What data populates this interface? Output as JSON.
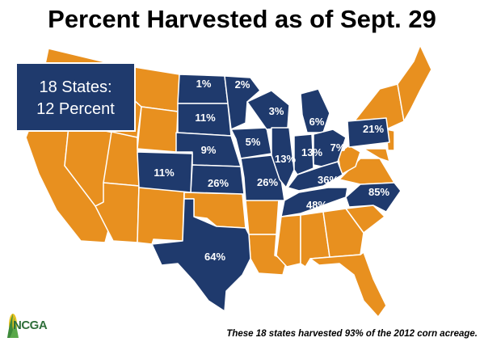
{
  "title": "Percent Harvested as of Sept. 29",
  "summary": {
    "line1": "18 States:",
    "line2": "12 Percent"
  },
  "footnote": "These 18 states harvested 93% of the 2012 corn acreage.",
  "logo_text": "NCGA",
  "colors": {
    "highlight_states": "#1f3a6d",
    "other_states": "#e8901f",
    "border": "#ffffff"
  },
  "state_labels": [
    {
      "state": "ND",
      "value": "1%"
    },
    {
      "state": "MN",
      "value": "2%"
    },
    {
      "state": "WI",
      "value": "3%"
    },
    {
      "state": "MI",
      "value": "6%"
    },
    {
      "state": "SD",
      "value": "11%"
    },
    {
      "state": "IA",
      "value": "5%"
    },
    {
      "state": "NE",
      "value": "9%"
    },
    {
      "state": "IL",
      "value": "13%"
    },
    {
      "state": "IN",
      "value": "13%"
    },
    {
      "state": "OH",
      "value": "7%"
    },
    {
      "state": "PA",
      "value": "21%"
    },
    {
      "state": "CO",
      "value": "11%"
    },
    {
      "state": "KS",
      "value": "26%"
    },
    {
      "state": "MO",
      "value": "26%"
    },
    {
      "state": "KY",
      "value": "36%"
    },
    {
      "state": "TN",
      "value": "48%"
    },
    {
      "state": "NC",
      "value": "85%"
    },
    {
      "state": "TX",
      "value": "64%"
    }
  ]
}
